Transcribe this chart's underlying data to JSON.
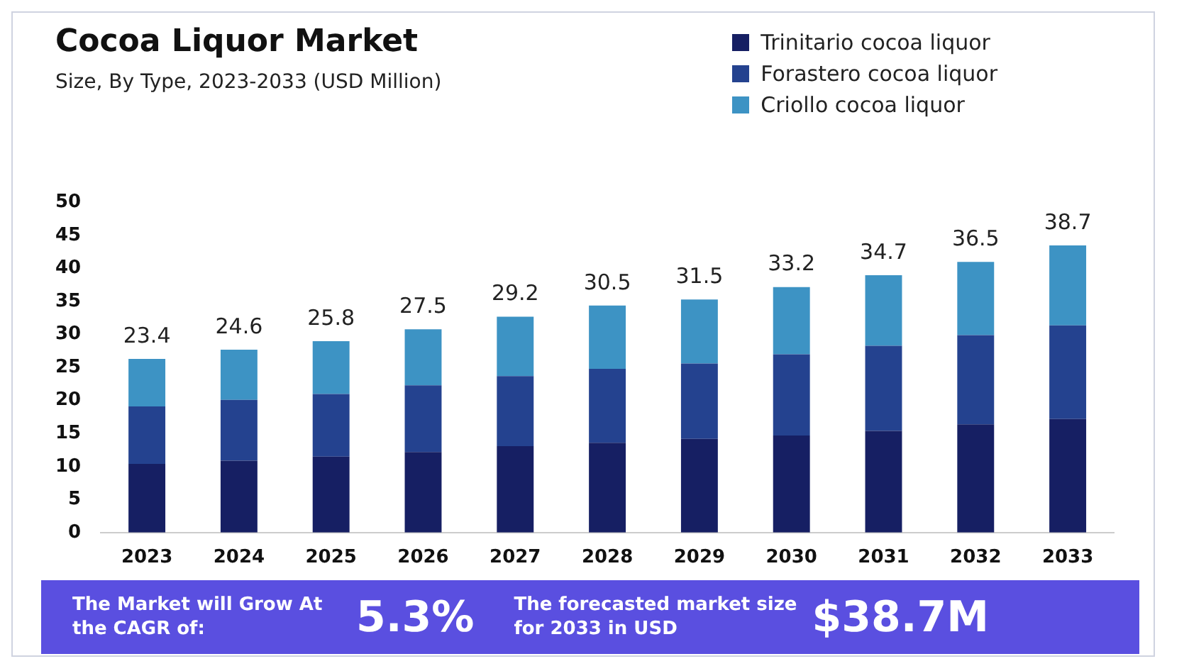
{
  "chart_data": {
    "type": "bar",
    "title": "Cocoa Liquor Market",
    "subtitle": "Size, By Type, 2023-2033 (USD Million)",
    "categories": [
      "2023",
      "2024",
      "2025",
      "2026",
      "2027",
      "2028",
      "2029",
      "2030",
      "2031",
      "2032",
      "2033"
    ],
    "series": [
      {
        "name": "Trinitario cocoa liquor",
        "color": "#161f63",
        "values": [
          10.4,
          10.9,
          11.5,
          12.2,
          13.1,
          13.6,
          14.2,
          14.7,
          15.4,
          16.4,
          17.2
        ]
      },
      {
        "name": "Forastero cocoa liquor",
        "color": "#24428f",
        "values": [
          8.7,
          9.2,
          9.5,
          10.1,
          10.6,
          11.2,
          11.4,
          12.3,
          12.9,
          13.5,
          14.2
        ]
      },
      {
        "name": "Criollo cocoa liquor",
        "color": "#3d93c4",
        "values": [
          7.2,
          7.6,
          8.0,
          8.5,
          9.0,
          9.6,
          9.7,
          10.2,
          10.7,
          11.1,
          12.1
        ]
      }
    ],
    "stacked": true,
    "ylim": [
      0,
      50
    ],
    "yticks": [
      0,
      5,
      10,
      15,
      20,
      25,
      30,
      35,
      40,
      45,
      50
    ],
    "grid": false,
    "legend": "top right",
    "annotations": [
      {
        "text": "23.4",
        "x": "2023",
        "y": 26.3
      },
      {
        "text": "24.6",
        "x": "2024",
        "y": 27.7
      },
      {
        "text": "25.8",
        "x": "2025",
        "y": 29.0
      },
      {
        "text": "27.5",
        "x": "2026",
        "y": 30.8
      },
      {
        "text": "29.2",
        "x": "2027",
        "y": 32.7
      },
      {
        "text": "30.5",
        "x": "2028",
        "y": 34.4
      },
      {
        "text": "31.5",
        "x": "2029",
        "y": 35.3
      },
      {
        "text": "33.2",
        "x": "2030",
        "y": 37.2
      },
      {
        "text": "34.7",
        "x": "2031",
        "y": 39.0
      },
      {
        "text": "36.5",
        "x": "2032",
        "y": 41.0
      },
      {
        "text": "38.7",
        "x": "2033",
        "y": 43.5
      },
      "The Market will Grow At the CAGR of:",
      "5.3%",
      "The forecasted market size for 2033 in USD",
      "$38.7M"
    ]
  }
}
